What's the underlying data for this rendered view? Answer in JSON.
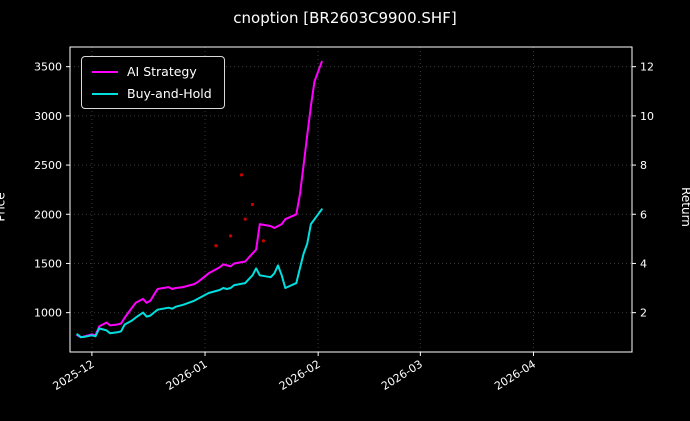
{
  "chart_data": {
    "type": "line",
    "title": "cnoption [BR2603C9900.SHF]",
    "ylabel": "Price",
    "y2label": "Return",
    "xlabel": "",
    "grid": true,
    "legend_position": "upper-left",
    "colors": {
      "background": "#000000",
      "foreground": "#ffffff",
      "grid": "#3a3a3a",
      "ai_strategy": "#ff00ff",
      "buy_and_hold": "#00e0e0",
      "signals": "#cc0000"
    },
    "ylim": [
      600,
      3700
    ],
    "y2lim": [
      0.4,
      12.8
    ],
    "xlim": [
      "2025-11-25",
      "2026-04-28"
    ],
    "yticks_left": [
      1000,
      1500,
      2000,
      2500,
      3000,
      3500
    ],
    "yticks_right": [
      2,
      4,
      6,
      8,
      10,
      12
    ],
    "xticks": [
      {
        "date": "2025-12-01",
        "label": "2025-12"
      },
      {
        "date": "2026-01-01",
        "label": "2026-01"
      },
      {
        "date": "2026-02-01",
        "label": "2026-02"
      },
      {
        "date": "2026-03-01",
        "label": "2026-03"
      },
      {
        "date": "2026-04-01",
        "label": "2026-04"
      }
    ],
    "dates": [
      "2025-11-27",
      "2025-11-28",
      "2025-11-29",
      "2025-12-01",
      "2025-12-02",
      "2025-12-03",
      "2025-12-04",
      "2025-12-05",
      "2025-12-06",
      "2025-12-08",
      "2025-12-09",
      "2025-12-10",
      "2025-12-11",
      "2025-12-12",
      "2025-12-13",
      "2025-12-15",
      "2025-12-16",
      "2025-12-17",
      "2025-12-18",
      "2025-12-19",
      "2025-12-22",
      "2025-12-23",
      "2025-12-24",
      "2025-12-26",
      "2025-12-29",
      "2025-12-30",
      "2025-12-31",
      "2026-01-02",
      "2026-01-05",
      "2026-01-06",
      "2026-01-07",
      "2026-01-08",
      "2026-01-09",
      "2026-01-12",
      "2026-01-13",
      "2026-01-14",
      "2026-01-15",
      "2026-01-16",
      "2026-01-19",
      "2026-01-20",
      "2026-01-21",
      "2026-01-22",
      "2026-01-23",
      "2026-01-26",
      "2026-01-27",
      "2026-01-28",
      "2026-01-29",
      "2026-01-30",
      "2026-01-31",
      "2026-02-02"
    ],
    "series": [
      {
        "name": "AI Strategy",
        "color_key": "ai_strategy",
        "values": [
          770,
          750,
          760,
          780,
          770,
          860,
          880,
          900,
          870,
          880,
          890,
          950,
          1000,
          1050,
          1100,
          1140,
          1100,
          1120,
          1180,
          1240,
          1260,
          1240,
          1250,
          1260,
          1290,
          1310,
          1340,
          1400,
          1460,
          1490,
          1480,
          1470,
          1500,
          1520,
          1560,
          1600,
          1640,
          1900,
          1880,
          1860,
          1880,
          1900,
          1950,
          2000,
          2200,
          2500,
          2800,
          3100,
          3350,
          3550
        ]
      },
      {
        "name": "Buy-and-Hold",
        "color_key": "buy_and_hold",
        "values": [
          780,
          750,
          755,
          770,
          760,
          840,
          830,
          820,
          790,
          800,
          810,
          880,
          900,
          920,
          950,
          1000,
          960,
          970,
          1000,
          1030,
          1050,
          1040,
          1060,
          1080,
          1120,
          1140,
          1160,
          1200,
          1230,
          1250,
          1240,
          1250,
          1280,
          1300,
          1340,
          1380,
          1450,
          1380,
          1360,
          1400,
          1480,
          1380,
          1250,
          1300,
          1450,
          1600,
          1700,
          1900,
          1950,
          2050
        ]
      }
    ],
    "signal_markers": [
      {
        "date": "2026-01-04",
        "value": 1680
      },
      {
        "date": "2026-01-08",
        "value": 1780
      },
      {
        "date": "2026-01-11",
        "value": 2400
      },
      {
        "date": "2026-01-12",
        "value": 1950
      },
      {
        "date": "2026-01-14",
        "value": 2100
      },
      {
        "date": "2026-01-17",
        "value": 1730
      }
    ]
  }
}
